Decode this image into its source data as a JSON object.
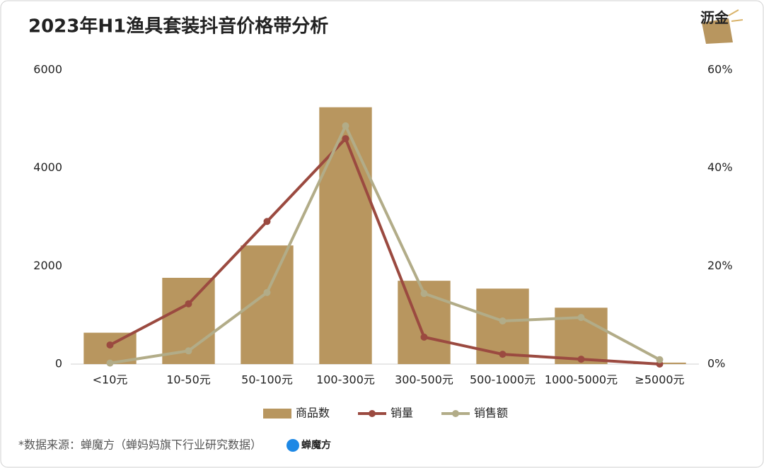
{
  "brand": "沥金",
  "chart_data": {
    "type": "bar",
    "title": "2023年H1渔具套装抖音价格带分析",
    "categories": [
      "<10元",
      "10-50元",
      "50-100元",
      "100-300元",
      "300-500元",
      "500-1000元",
      "1000-5000元",
      "≥5000元"
    ],
    "series": [
      {
        "name": "商品数",
        "type": "bar",
        "color": "#b8965f",
        "values": [
          640,
          1760,
          2420,
          5240,
          1700,
          1540,
          1150,
          30
        ]
      },
      {
        "name": "销量",
        "type": "line",
        "axis": "y2",
        "color": "#9b4a40",
        "values": [
          3.9,
          12.3,
          29.1,
          46.0,
          5.5,
          2.0,
          1.0,
          0
        ]
      },
      {
        "name": "销售额",
        "type": "line",
        "axis": "y2",
        "color": "#b2ac88",
        "values": [
          0.2,
          2.7,
          14.6,
          48.6,
          14.4,
          8.8,
          9.5,
          0.9
        ]
      }
    ],
    "ylim": [
      0,
      6000
    ],
    "yticks": [
      0,
      2000,
      4000,
      6000
    ],
    "y2lim": [
      0,
      60
    ],
    "y2ticks": [
      {
        "value": 0,
        "label": "0%"
      },
      {
        "value": 20,
        "label": "20%"
      },
      {
        "value": 40,
        "label": "40%"
      },
      {
        "value": 60,
        "label": "60%"
      }
    ],
    "legend": "bottom",
    "source": "*数据来源：蝉魔方（蝉妈妈旗下行业研究数据）",
    "source_logo": "蝉魔方"
  }
}
